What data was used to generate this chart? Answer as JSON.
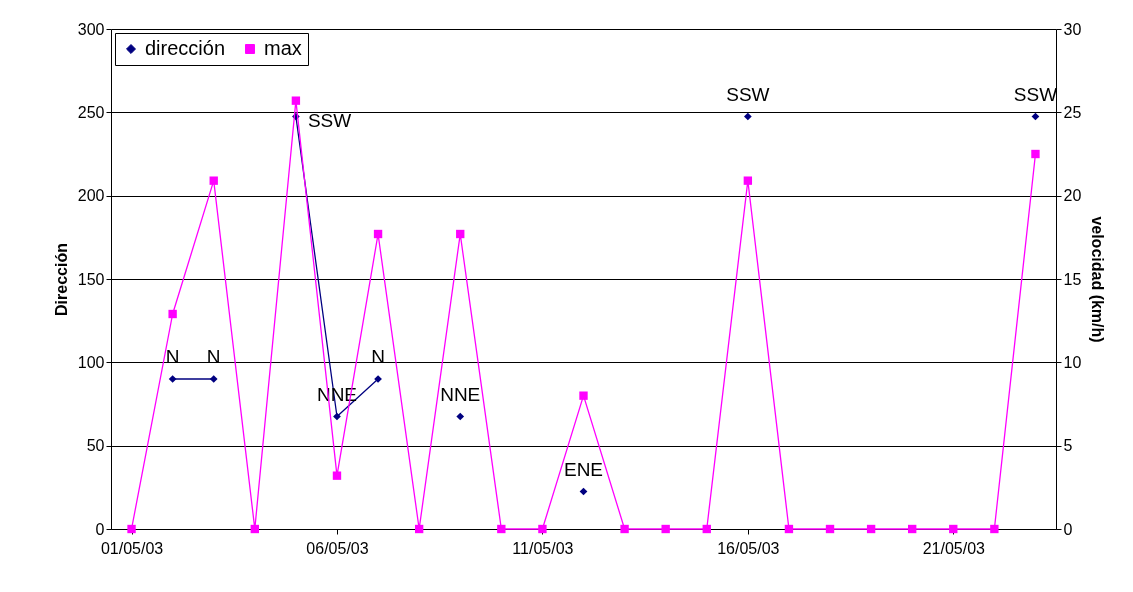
{
  "chart_data": {
    "type": "line",
    "categories": [
      "01/05/03",
      null,
      null,
      null,
      null,
      "06/05/03",
      null,
      null,
      null,
      null,
      "11/05/03",
      null,
      null,
      null,
      null,
      "16/05/03",
      null,
      null,
      null,
      null,
      "21/05/03",
      null,
      null
    ],
    "series": [
      {
        "name": "dirección",
        "color": "#000080",
        "marker": "diamond",
        "values": [
          null,
          90,
          90,
          null,
          247.5,
          67.5,
          90,
          null,
          67.5,
          null,
          null,
          22.5,
          null,
          null,
          null,
          247.5,
          null,
          null,
          null,
          null,
          null,
          null,
          247.5
        ],
        "value_labels": [
          null,
          "N",
          "N",
          null,
          "SSW",
          "NNE",
          "N",
          null,
          "NNE",
          null,
          null,
          "ENE",
          null,
          null,
          null,
          "SSW",
          null,
          null,
          null,
          null,
          null,
          null,
          "SSW"
        ]
      },
      {
        "name": "max",
        "color": "#ff00ff",
        "marker": "square",
        "axis": "y2",
        "values": [
          0,
          12.9,
          20.9,
          0,
          25.7,
          3.2,
          17.7,
          0,
          17.7,
          0,
          0,
          8.0,
          0,
          0,
          0,
          20.9,
          0,
          0,
          0,
          0,
          0,
          0,
          22.5
        ]
      }
    ],
    "ylabel": "Dirección",
    "y2label": "velocidad (km/h)",
    "ylim": [
      0,
      300
    ],
    "yticks": [
      0,
      50,
      100,
      150,
      200,
      250,
      300
    ],
    "y2lim": [
      0,
      30
    ],
    "y2ticks": [
      0,
      5,
      10,
      15,
      20,
      25,
      30
    ],
    "grid": "y",
    "legend": "top left"
  }
}
